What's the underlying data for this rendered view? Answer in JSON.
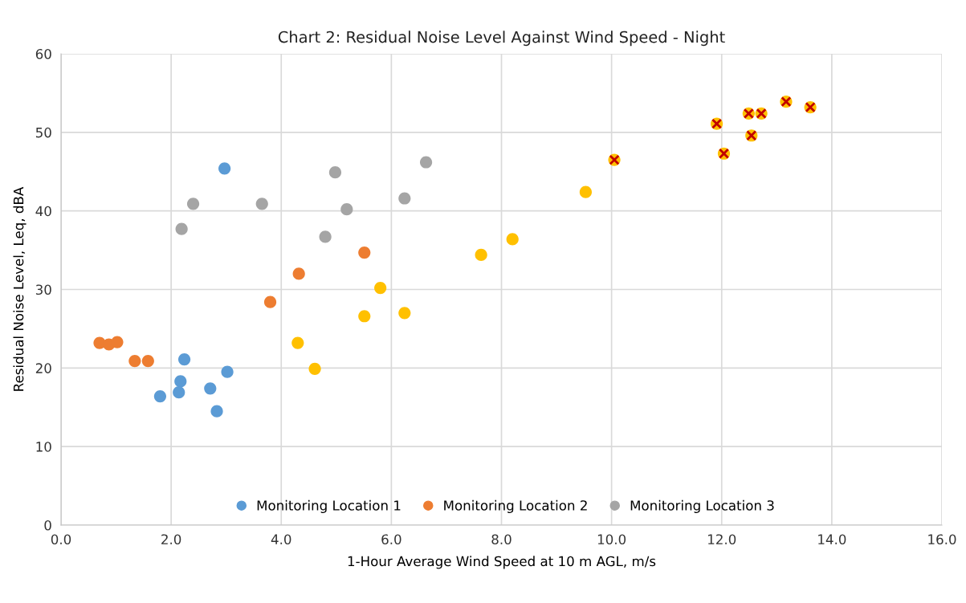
{
  "chart_data": {
    "type": "scatter",
    "title": "Chart 2: Residual Noise Level Against Wind Speed - Night",
    "xlabel": "1-Hour Average Wind Speed at 10 m AGL, m/s",
    "ylabel": "Residual Noise Level, Leq, dBA",
    "xlim": [
      0,
      16
    ],
    "ylim": [
      0,
      60
    ],
    "xticks": [
      {
        "value": 0,
        "label": "0.0"
      },
      {
        "value": 2,
        "label": "2.0"
      },
      {
        "value": 4,
        "label": "4.0"
      },
      {
        "value": 6,
        "label": "6.0"
      },
      {
        "value": 8,
        "label": "8.0"
      },
      {
        "value": 10,
        "label": "10.0"
      },
      {
        "value": 12,
        "label": "12.0"
      },
      {
        "value": 14,
        "label": "14.0"
      },
      {
        "value": 16,
        "label": "16.0"
      }
    ],
    "yticks": [
      0,
      10,
      20,
      30,
      40,
      50,
      60
    ],
    "grid": true,
    "legend": "bottom",
    "marker": "circle",
    "series": [
      {
        "name": "Monitoring Location 1",
        "color": "#5b9bd5",
        "x": [
          2.97,
          2.24,
          3.02,
          2.17,
          2.14,
          1.8,
          2.71,
          2.83
        ],
        "values": [
          45.4,
          21.1,
          19.5,
          18.3,
          16.9,
          16.4,
          17.4,
          14.5
        ]
      },
      {
        "name": "Monitoring Location 2",
        "color": "#ed7d31",
        "x": [
          0.7,
          0.87,
          1.02,
          1.34,
          1.58,
          3.8,
          4.32,
          5.51
        ],
        "values": [
          23.2,
          23.0,
          23.3,
          20.9,
          20.9,
          28.4,
          32.0,
          34.7
        ]
      },
      {
        "name": "Monitoring Location 3",
        "color": "#a5a5a5",
        "x": [
          2.19,
          2.4,
          3.65,
          4.8,
          4.98,
          5.19,
          6.24,
          6.63
        ],
        "values": [
          37.7,
          40.9,
          40.9,
          36.7,
          44.9,
          40.2,
          41.6,
          46.2
        ]
      },
      {
        "color": "#ffc000",
        "x": [
          4.3,
          4.61,
          5.51,
          5.8,
          6.24,
          7.63,
          8.2,
          9.53,
          10.05,
          11.91,
          12.04,
          12.49,
          12.72,
          12.54,
          13.17,
          13.61
        ],
        "values": [
          23.2,
          19.9,
          26.6,
          30.2,
          27.0,
          34.4,
          36.4,
          42.4,
          46.5,
          51.1,
          47.3,
          52.4,
          52.4,
          49.6,
          53.9,
          53.2
        ]
      },
      {
        "color": "#c00000",
        "marker": "cross",
        "x": [
          10.05,
          11.91,
          12.04,
          12.49,
          12.72,
          12.54,
          13.17,
          13.61
        ],
        "values": [
          46.5,
          51.1,
          47.3,
          52.4,
          52.4,
          49.6,
          53.9,
          53.2
        ]
      }
    ]
  }
}
